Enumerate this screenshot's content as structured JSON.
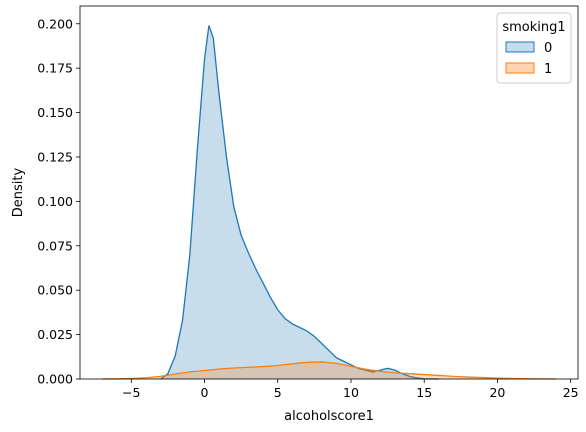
{
  "chart_data": {
    "type": "area",
    "title": "",
    "xlabel": "alcoholscore1",
    "ylabel": "Density",
    "xlim": [
      -8.5,
      25.5
    ],
    "ylim": [
      0,
      0.21
    ],
    "xticks": [
      -5,
      0,
      5,
      10,
      15,
      20,
      25
    ],
    "yticks": [
      0.0,
      0.025,
      0.05,
      0.075,
      0.1,
      0.125,
      0.15,
      0.175,
      0.2
    ],
    "ytick_labels": [
      "0.000",
      "0.025",
      "0.050",
      "0.075",
      "0.100",
      "0.125",
      "0.150",
      "0.175",
      "0.200"
    ],
    "grid": false,
    "legend": {
      "title": "smoking1",
      "placement": "top-right"
    },
    "series": [
      {
        "name": "0",
        "color": "#1f77b4",
        "fill": "#c6dbef",
        "x": [
          -3.0,
          -2.5,
          -2.0,
          -1.5,
          -1.0,
          -0.5,
          0.0,
          0.3,
          0.6,
          1.0,
          1.5,
          2.0,
          2.5,
          3.0,
          3.5,
          4.0,
          4.5,
          5.0,
          5.5,
          6.0,
          6.5,
          7.0,
          7.5,
          8.0,
          8.5,
          9.0,
          9.5,
          10.0,
          10.5,
          11.0,
          11.5,
          12.0,
          12.5,
          13.0,
          13.5,
          14.0,
          14.5,
          15.0,
          16.0
        ],
        "y": [
          0.0,
          0.003,
          0.013,
          0.033,
          0.07,
          0.128,
          0.18,
          0.199,
          0.192,
          0.16,
          0.125,
          0.097,
          0.081,
          0.071,
          0.062,
          0.054,
          0.046,
          0.039,
          0.034,
          0.031,
          0.029,
          0.027,
          0.024,
          0.02,
          0.016,
          0.012,
          0.01,
          0.008,
          0.006,
          0.005,
          0.004,
          0.005,
          0.006,
          0.005,
          0.003,
          0.0015,
          0.0006,
          0.0001,
          0.0
        ]
      },
      {
        "name": "1",
        "color": "#ff7f0e",
        "fill": "#ffd4b0",
        "x": [
          -7.0,
          -6.0,
          -5.0,
          -4.0,
          -3.0,
          -2.0,
          -1.0,
          0.0,
          1.0,
          2.0,
          3.0,
          4.0,
          5.0,
          6.0,
          7.0,
          8.0,
          9.0,
          10.0,
          11.0,
          12.0,
          13.0,
          14.0,
          15.0,
          16.0,
          17.0,
          18.0,
          19.0,
          20.0,
          21.0,
          22.0,
          23.0,
          24.0
        ],
        "y": [
          0.0,
          0.0001,
          0.0003,
          0.0007,
          0.0015,
          0.0028,
          0.004,
          0.0048,
          0.0056,
          0.0062,
          0.0066,
          0.007,
          0.0076,
          0.0086,
          0.0094,
          0.0096,
          0.0088,
          0.0072,
          0.0055,
          0.0043,
          0.0035,
          0.003,
          0.0025,
          0.002,
          0.0015,
          0.0011,
          0.0008,
          0.0005,
          0.0003,
          0.00015,
          6e-05,
          0.0
        ]
      }
    ]
  }
}
